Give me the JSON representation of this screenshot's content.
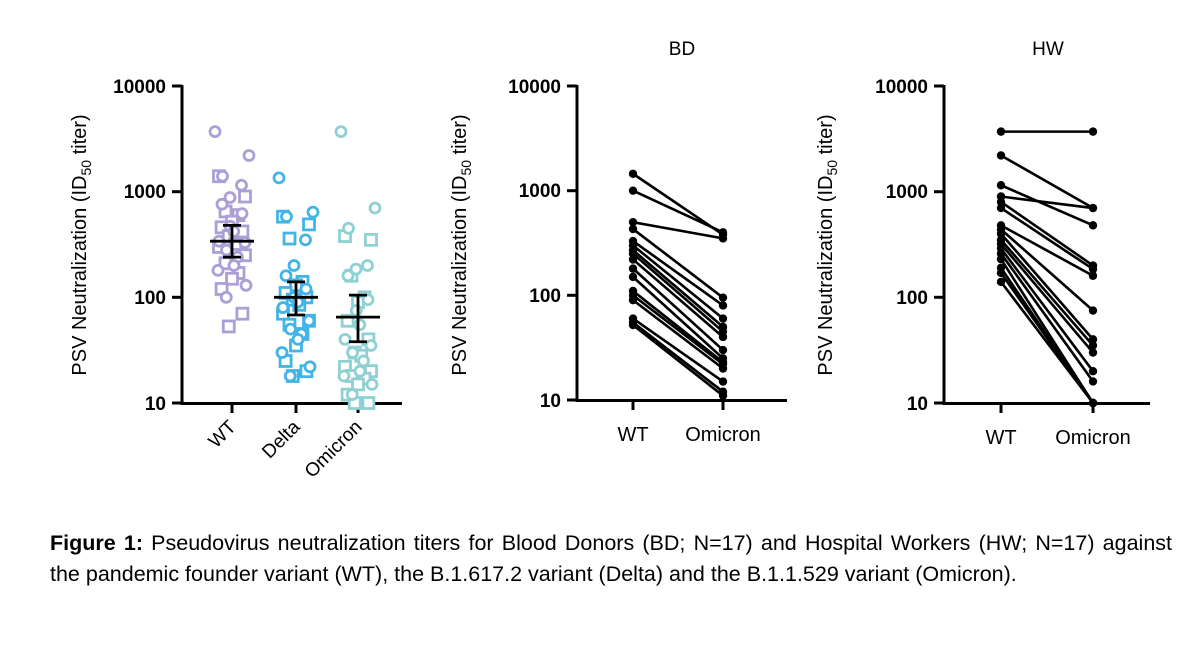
{
  "colors": {
    "wt": "#ab9fd6",
    "delta": "#42b4e6",
    "omicron": "#8fd1d2",
    "line": "#000000"
  },
  "icons": {
    "circle_marker": "circle-icon",
    "square_marker": "square-icon"
  },
  "chart_data": [
    {
      "type": "scatter",
      "title": "",
      "ylabel_parts": [
        "PSV Neutralization (ID",
        "50",
        " titer)"
      ],
      "yscale": "log",
      "ylim": [
        10,
        10000
      ],
      "yticks": [
        10,
        100,
        1000,
        10000
      ],
      "ytick_labels": [
        "10",
        "100",
        "1000",
        "10000"
      ],
      "categories": [
        "WT",
        "Delta",
        "Omicron"
      ],
      "series": [
        {
          "name": "WT",
          "color": "#ab9fd6",
          "circles": [
            3700,
            2200,
            1400,
            1150,
            880,
            760,
            620,
            470,
            420,
            340,
            330,
            280,
            240,
            200,
            180,
            130,
            100
          ],
          "squares": [
            1400,
            900,
            650,
            600,
            520,
            460,
            420,
            380,
            320,
            300,
            250,
            210,
            170,
            150,
            120,
            70,
            53
          ],
          "gmean": 340,
          "ci": [
            240,
            480
          ]
        },
        {
          "name": "Delta",
          "color": "#42b4e6",
          "circles": [
            1350,
            640,
            580,
            350,
            200,
            160,
            120,
            100,
            90,
            80,
            60,
            50,
            45,
            40,
            30,
            22,
            18
          ],
          "squares": [
            580,
            490,
            360,
            140,
            130,
            110,
            100,
            95,
            85,
            70,
            60,
            55,
            45,
            35,
            25,
            20,
            18
          ],
          "gmean": 100,
          "ci": [
            68,
            140
          ]
        },
        {
          "name": "Omicron",
          "color": "#8fd1d2",
          "circles": [
            3700,
            700,
            450,
            200,
            185,
            160,
            95,
            75,
            55,
            40,
            35,
            30,
            25,
            20,
            18,
            15,
            12
          ],
          "squares": [
            380,
            350,
            160,
            100,
            90,
            60,
            40,
            30,
            28,
            22,
            20,
            18,
            17,
            15,
            12,
            10,
            10
          ],
          "gmean": 65,
          "ci": [
            38,
            105
          ]
        }
      ]
    },
    {
      "type": "line",
      "title": "BD",
      "ylabel_parts": [
        "PSV Neutralization (ID",
        "50",
        " titer)"
      ],
      "yscale": "log",
      "ylim": [
        10,
        10000
      ],
      "yticks": [
        10,
        100,
        1000,
        10000
      ],
      "ytick_labels": [
        "10",
        "100",
        "1000",
        "10000"
      ],
      "categories": [
        "WT",
        "Omicron"
      ],
      "pairs": [
        [
          1450,
          380
        ],
        [
          1000,
          400
        ],
        [
          500,
          350
        ],
        [
          430,
          95
        ],
        [
          330,
          80
        ],
        [
          300,
          60
        ],
        [
          270,
          50
        ],
        [
          250,
          45
        ],
        [
          220,
          40
        ],
        [
          180,
          30
        ],
        [
          150,
          25
        ],
        [
          110,
          23
        ],
        [
          100,
          22
        ],
        [
          90,
          20
        ],
        [
          60,
          15
        ],
        [
          55,
          12
        ],
        [
          52,
          11
        ]
      ]
    },
    {
      "type": "line",
      "title": "HW",
      "ylabel_parts": [
        "PSV Neutralization (ID",
        "50",
        " titer)"
      ],
      "yscale": "log",
      "ylim": [
        10,
        10000
      ],
      "yticks": [
        10,
        100,
        1000,
        10000
      ],
      "ytick_labels": [
        "10",
        "100",
        "1000",
        "10000"
      ],
      "categories": [
        "WT",
        "Omicron"
      ],
      "pairs": [
        [
          3700,
          3700
        ],
        [
          2200,
          700
        ],
        [
          1150,
          480
        ],
        [
          900,
          700
        ],
        [
          800,
          200
        ],
        [
          700,
          185
        ],
        [
          480,
          160
        ],
        [
          440,
          75
        ],
        [
          400,
          40
        ],
        [
          350,
          35
        ],
        [
          320,
          30
        ],
        [
          290,
          20
        ],
        [
          260,
          16
        ],
        [
          230,
          10
        ],
        [
          190,
          10
        ],
        [
          170,
          10
        ],
        [
          140,
          10
        ]
      ]
    }
  ],
  "caption": {
    "label": "Figure 1:",
    "text": " Pseudovirus neutralization titers for Blood Donors (BD; N=17) and Hospital Workers (HW; N=17) against the pandemic founder variant (WT), the B.1.617.2 variant (Delta) and the B.1.1.529 variant (Omicron)."
  }
}
